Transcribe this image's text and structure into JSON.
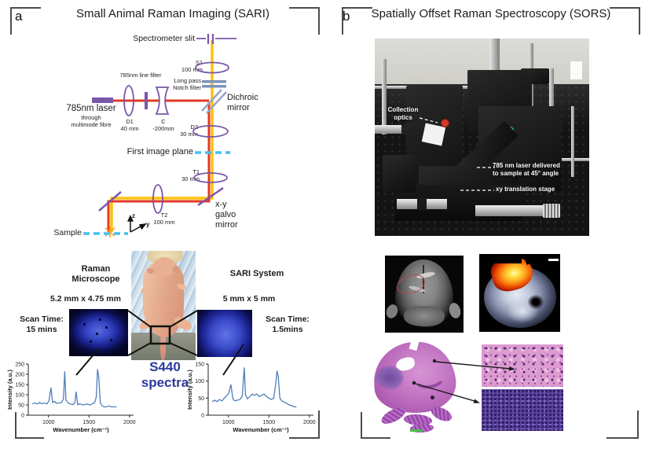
{
  "colors": {
    "laser_red": "#e23a22",
    "collection_yellow": "#ffc10d",
    "optics_purple": "#7b57a8",
    "image_plane_cyan": "#43c1ef",
    "filter_steel": "#7d93bb",
    "spectra_navy": "#2b3a9b",
    "spectrum_line": "#4f7fba"
  },
  "panel_a": {
    "label": "a",
    "title": "Small Animal Raman Imaging (SARI)",
    "diagram": {
      "spectrometer_slit": "Spectrometer slit",
      "s1": "S1\n100 mm",
      "line_filter": "785nm line filter",
      "long_pass": "Long pass\nNotch filter",
      "dichroic": "Dichroic\nmirror",
      "laser": "785nm laser",
      "laser_sub": "through\nmultimode fibre",
      "d1": "D1\n40 mm",
      "c": "C\n-200mm",
      "d2": "D2\n30 mm",
      "first_image_plane": "First image plane",
      "t1": "T1\n30 mm",
      "t2": "T2\n100 mm",
      "galvo": "x-y\ngalvo\nmirror",
      "sample": "Sample",
      "axis_z": "z",
      "axis_y": "y"
    },
    "comparison": {
      "left_title": "Raman\nMicroscope",
      "left_size": "5.2 mm x 4.75 mm",
      "left_scan": "Scan Time:\n15 mins",
      "right_title": "SARI System",
      "right_size": "5 mm x 5 mm",
      "right_scan": "Scan Time:\n1.5mins",
      "center_label": "S440\nspectra"
    }
  },
  "panel_b": {
    "label": "b",
    "title": "Spatially Offset Raman Spectroscopy (SORS)",
    "photo_labels": {
      "collection": "Collection\noptics",
      "laser": "785 nm laser delivered\nto sample at 45° angle",
      "stage": "xy translation stage"
    }
  },
  "chart_data": [
    {
      "type": "line",
      "name": "raman-microscope-spectrum",
      "xlabel": "Wavenumber (cm⁻¹)",
      "ylabel": "Intensity (a.u.)",
      "xlim": [
        750,
        2050
      ],
      "ylim": [
        0,
        250
      ],
      "xticks": [
        1000,
        1500,
        2000
      ],
      "yticks": [
        0,
        50,
        100,
        150,
        200,
        250
      ],
      "line_color": "#4f7fba",
      "x": [
        800,
        830,
        860,
        890,
        920,
        950,
        980,
        1005,
        1030,
        1050,
        1075,
        1100,
        1130,
        1160,
        1185,
        1200,
        1215,
        1240,
        1270,
        1300,
        1325,
        1340,
        1360,
        1390,
        1420,
        1450,
        1480,
        1510,
        1540,
        1570,
        1590,
        1605,
        1620,
        1640,
        1665,
        1690,
        1720,
        1750,
        1780,
        1810,
        1840
      ],
      "y": [
        55,
        60,
        55,
        62,
        56,
        60,
        55,
        70,
        135,
        62,
        68,
        57,
        60,
        62,
        80,
        215,
        75,
        60,
        55,
        52,
        60,
        115,
        52,
        55,
        50,
        52,
        55,
        50,
        55,
        62,
        90,
        225,
        185,
        60,
        45,
        40,
        42,
        45,
        40,
        42,
        40
      ]
    },
    {
      "type": "line",
      "name": "sari-system-spectrum",
      "xlabel": "Wavenumber (cm⁻¹)",
      "ylabel": "Intensity (a.u.)",
      "xlim": [
        750,
        2050
      ],
      "ylim": [
        0,
        150
      ],
      "xticks": [
        1000,
        1500,
        2000
      ],
      "yticks": [
        0,
        50,
        100,
        150
      ],
      "line_color": "#4f7fba",
      "x": [
        800,
        830,
        860,
        890,
        920,
        950,
        980,
        1005,
        1030,
        1055,
        1080,
        1110,
        1140,
        1170,
        1195,
        1210,
        1235,
        1265,
        1295,
        1320,
        1350,
        1380,
        1410,
        1440,
        1470,
        1500,
        1530,
        1560,
        1585,
        1600,
        1615,
        1635,
        1660,
        1690,
        1720,
        1750,
        1780,
        1810,
        1840
      ],
      "y": [
        40,
        44,
        40,
        46,
        42,
        50,
        58,
        65,
        90,
        48,
        42,
        44,
        46,
        55,
        140,
        60,
        48,
        55,
        62,
        58,
        62,
        55,
        58,
        62,
        55,
        50,
        46,
        50,
        95,
        130,
        113,
        50,
        42,
        38,
        35,
        30,
        28,
        25,
        24
      ]
    }
  ]
}
